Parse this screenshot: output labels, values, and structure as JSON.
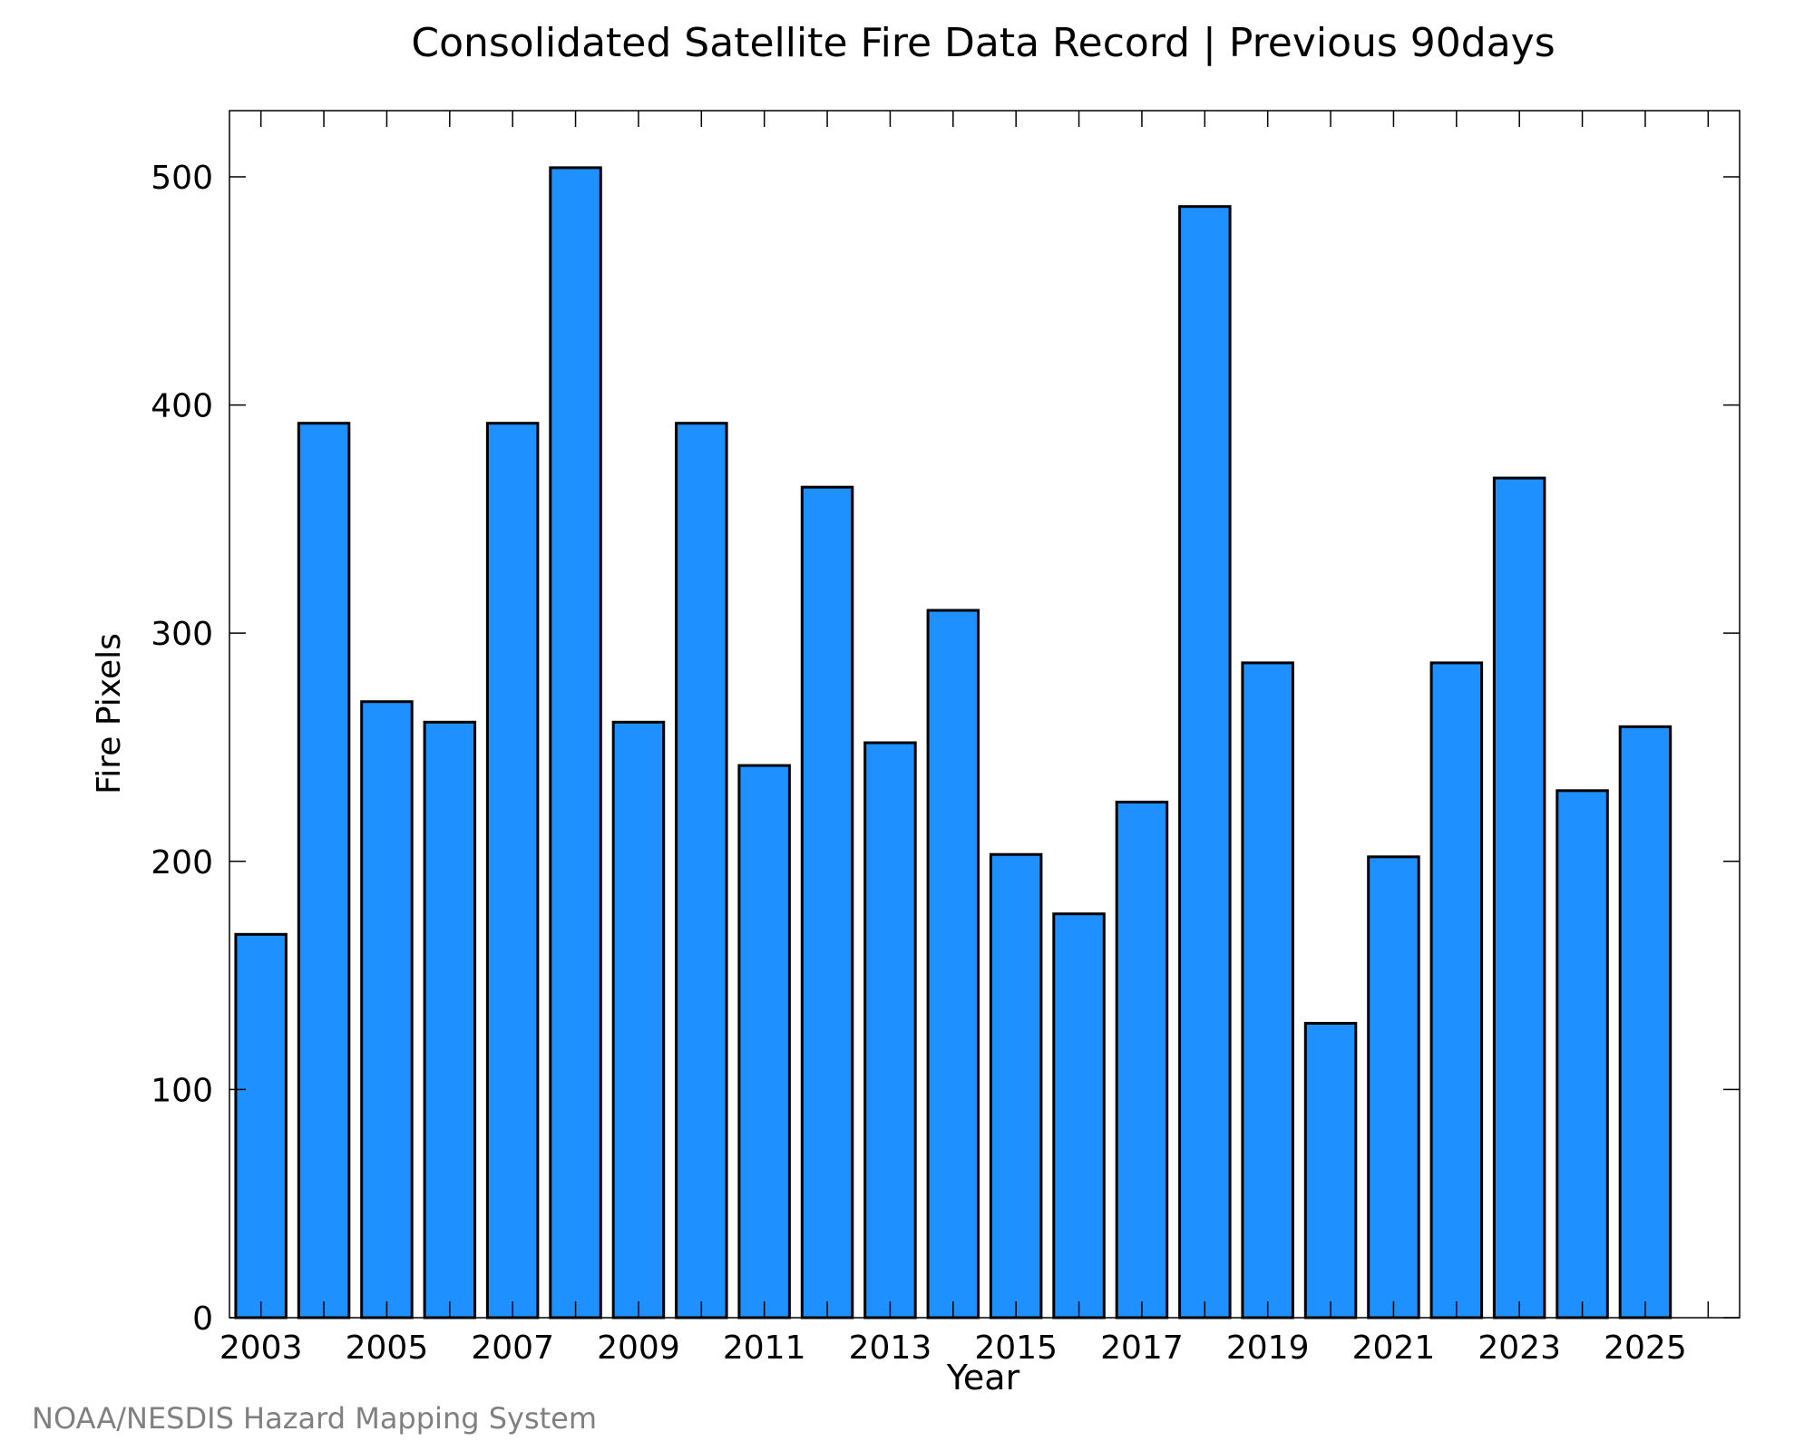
{
  "chart_data": {
    "type": "bar",
    "title": "Consolidated Satellite Fire Data Record | Previous 90days",
    "xlabel": "Year",
    "ylabel": "Fire Pixels",
    "categories": [
      "2003",
      "2004",
      "2005",
      "2006",
      "2007",
      "2008",
      "2009",
      "2010",
      "2011",
      "2012",
      "2013",
      "2014",
      "2015",
      "2016",
      "2017",
      "2018",
      "2019",
      "2020",
      "2021",
      "2022",
      "2023",
      "2024",
      "2025"
    ],
    "values": [
      168,
      392,
      270,
      261,
      392,
      504,
      261,
      392,
      242,
      364,
      252,
      310,
      203,
      177,
      226,
      487,
      287,
      129,
      202,
      287,
      368,
      231,
      259
    ],
    "xticks": [
      "2003",
      "2005",
      "2007",
      "2009",
      "2011",
      "2013",
      "2015",
      "2017",
      "2019",
      "2021",
      "2023",
      "2025"
    ],
    "yticks": [
      0,
      100,
      200,
      300,
      400,
      500
    ],
    "xlim": [
      2002.5,
      2026.5
    ],
    "ylim": [
      0,
      529
    ],
    "bar_color": "#1e90ff",
    "bar_edge_color": "#000000",
    "grid": false
  },
  "footer": {
    "credit": "NOAA/NESDIS Hazard Mapping System"
  }
}
